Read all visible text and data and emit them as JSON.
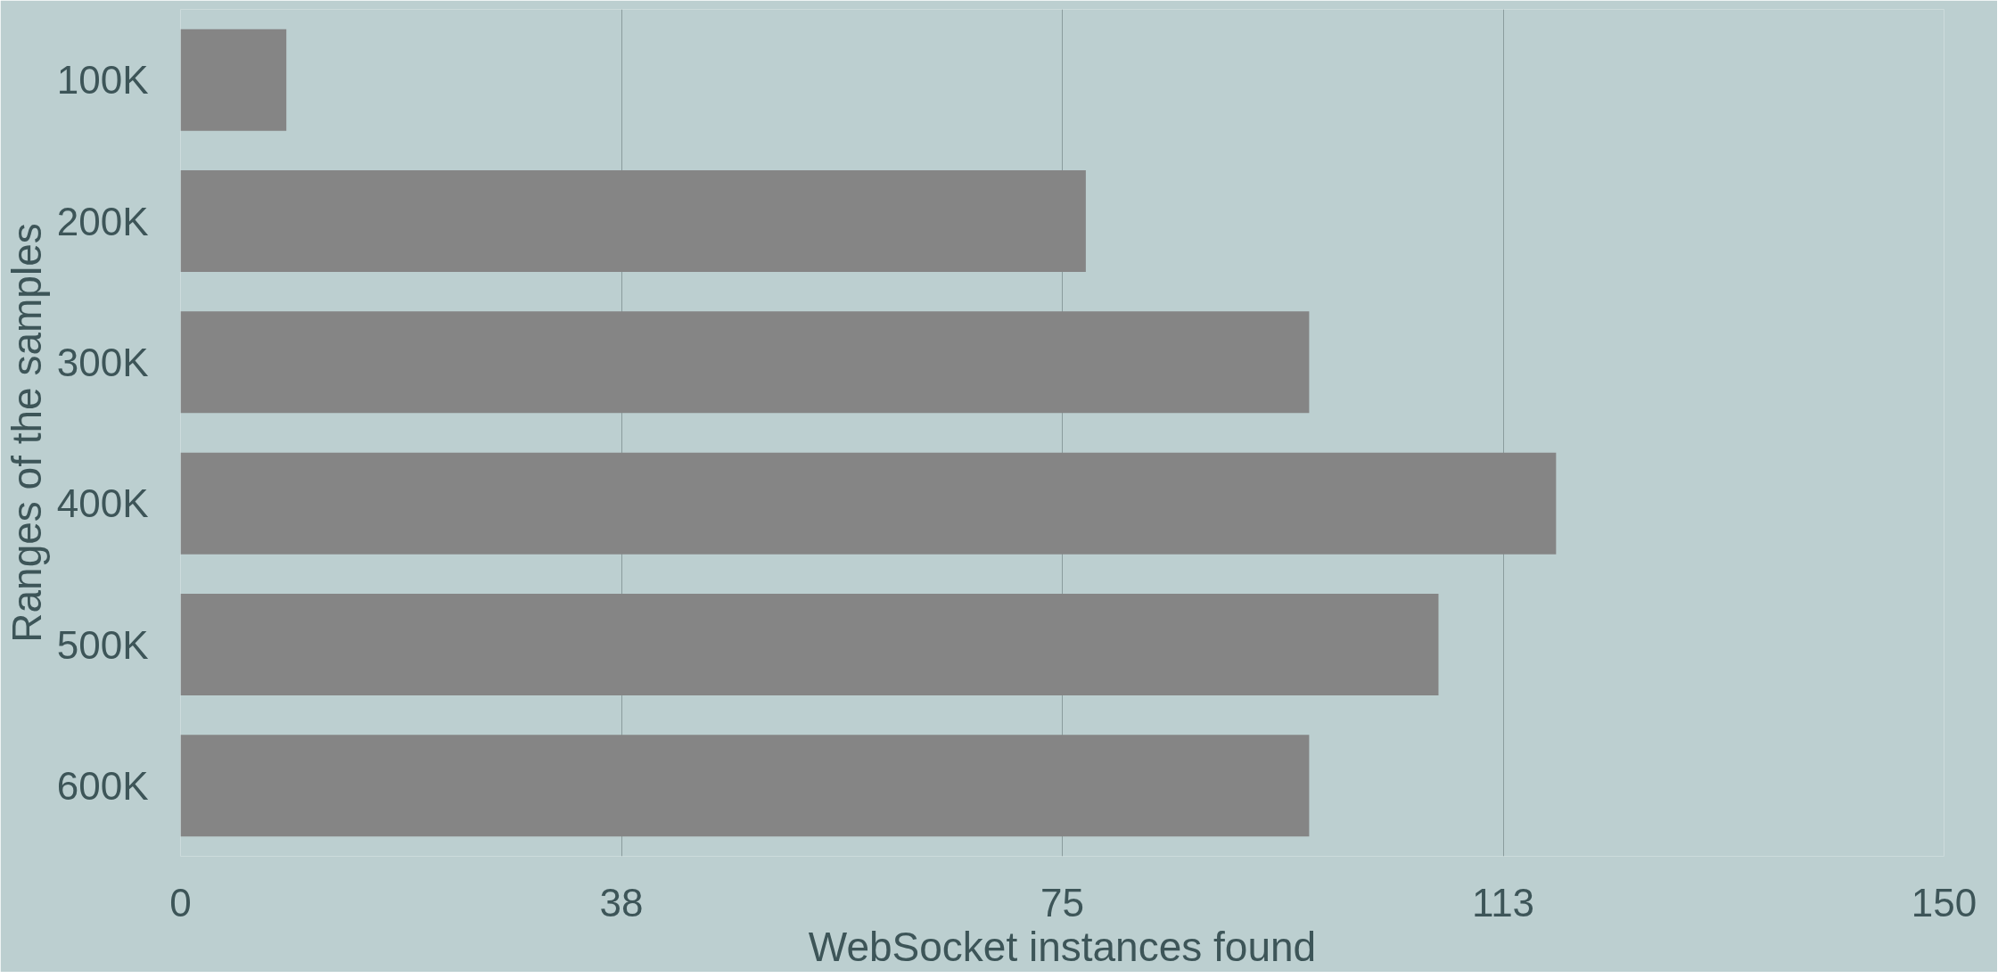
{
  "chart_data": {
    "type": "bar",
    "orientation": "horizontal",
    "xlabel": "WebSocket instances found",
    "ylabel": "Ranges of the samples",
    "categories": [
      "100K",
      "200K",
      "300K",
      "400K",
      "500K",
      "600K"
    ],
    "values": [
      9,
      77,
      96,
      117,
      107,
      96
    ],
    "color": "#858585",
    "xlim": [
      0,
      150
    ],
    "xticks": [
      0,
      {
        "value": 37.5,
        "label": "38"
      },
      75,
      {
        "value": 112.5,
        "label": "113"
      },
      150
    ],
    "grid": "x"
  }
}
